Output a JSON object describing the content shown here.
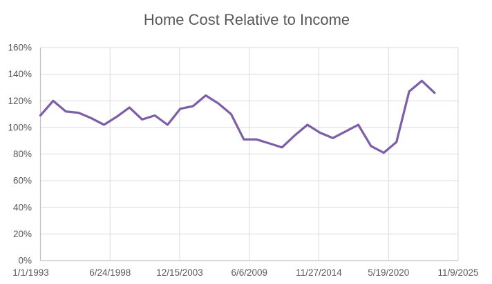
{
  "chart_data": {
    "type": "line",
    "title": "Home Cost Relative to Income",
    "x": [
      1993,
      1994,
      1995,
      1996,
      1997,
      1998,
      1999,
      2000,
      2001,
      2002,
      2003,
      2004,
      2005,
      2006,
      2007,
      2008,
      2009,
      2010,
      2011,
      2012,
      2013,
      2014,
      2015,
      2016,
      2017,
      2018,
      2019,
      2020,
      2021,
      2022,
      2023,
      2024
    ],
    "values": [
      109,
      120,
      112,
      111,
      107,
      102,
      108,
      115,
      106,
      109,
      102,
      114,
      116,
      124,
      118,
      110,
      91,
      91,
      88,
      85,
      94,
      102,
      96,
      92,
      97,
      102,
      86,
      81,
      89,
      127,
      135,
      126
    ],
    "series_name": "Home cost relative to income",
    "xlabel": "",
    "ylabel": "",
    "x_axis": {
      "type": "date",
      "tick_labels": [
        "1/1/1993",
        "6/24/1998",
        "12/15/2003",
        "6/6/2009",
        "11/27/2014",
        "5/19/2020",
        "11/9/2025"
      ],
      "tick_interval_days": 2000,
      "min_date": "1/1/1993",
      "max_date": "11/9/2025"
    },
    "y_axis": {
      "tick_labels": [
        "0%",
        "20%",
        "40%",
        "60%",
        "80%",
        "100%",
        "120%",
        "140%",
        "160%"
      ],
      "min": 0,
      "max": 160,
      "step": 20,
      "unit": "%"
    },
    "grid": true,
    "legend": "none",
    "colors": {
      "series_line": "#7D5FA8",
      "title_text": "#595959",
      "tick_text": "#595959",
      "gridline": "#D9D9D9",
      "axis_line": "#BFBFBF",
      "background": "#FFFFFF"
    }
  }
}
